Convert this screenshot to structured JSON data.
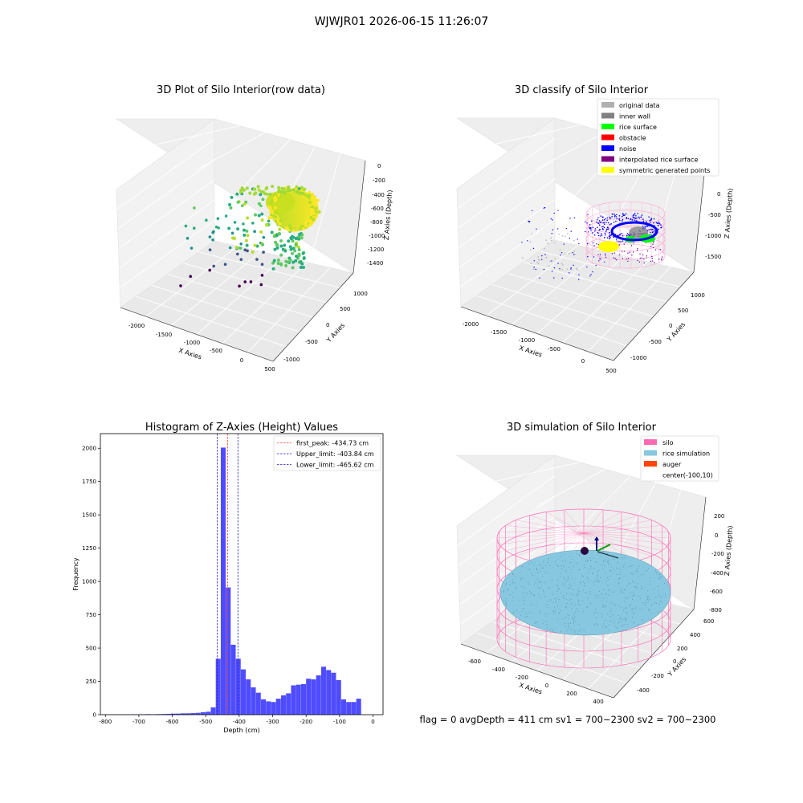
{
  "figure": {
    "suptitle": "WJWJR01 2026-06-15 11:26:07",
    "footer": "flag = 0     avgDepth = 411 cm  sv1 = 700~2300  sv2 = 700~2300"
  },
  "colors": {
    "hist_bar": "#4f4cff",
    "peak_line": "#ff3b30",
    "limit_line": "#1d1dbb",
    "silo": "#ff69b4",
    "rice": "#87c8e0",
    "auger": "#ff4500",
    "original_data": "#b0b0b0",
    "inner_wall": "#808080",
    "rice_surface": "#00ff00",
    "obstacle": "#ff0000",
    "noise": "#0000ff",
    "interpolated": "#800080",
    "symmetric": "#ffff00"
  },
  "chart_data": [
    {
      "type": "scatter",
      "title": "3D Plot of Silo Interior(row data)",
      "xlabel": "X Axies",
      "ylabel": "Y Axies",
      "zlabel": "Z Axies (Depth)",
      "xticks": [
        "-2000",
        "-1500",
        "-1000",
        "-500",
        "0",
        "500"
      ],
      "yticks": [
        "-1000",
        "-500",
        "0",
        "500",
        "1000"
      ],
      "zticks": [
        "0",
        "-200",
        "-400",
        "-600",
        "-800",
        "-1000",
        "-1200",
        "-1400"
      ],
      "colormap": "viridis"
    },
    {
      "type": "scatter",
      "title": "3D classify of Silo Interior",
      "xlabel": "X Axies",
      "ylabel": "Y Axies",
      "zlabel": "Z Axies (Depth)",
      "xticks": [
        "-2000",
        "-1500",
        "-1000",
        "-500",
        "0",
        "500"
      ],
      "yticks": [
        "-1000",
        "-500",
        "0",
        "500",
        "1000"
      ],
      "zticks": [
        "0",
        "-500",
        "-1000",
        "-1500"
      ],
      "legend": [
        "original data",
        "inner wall",
        "rice surface",
        "obstacle",
        "noise",
        "interpolated rice surface",
        "symmetric generated points"
      ],
      "legend_placement": "top-right"
    },
    {
      "type": "bar",
      "title": "Histogram of Z-Axies (Height) Values",
      "xlabel": "Depth (cm)",
      "ylabel": "Frequency",
      "xlim": [
        -815,
        30
      ],
      "ylim": [
        0,
        2110
      ],
      "xticks": [
        "-800",
        "-700",
        "-600",
        "-500",
        "-400",
        "-300",
        "-200",
        "-100",
        "0"
      ],
      "xtick_values": [
        -800,
        -700,
        -600,
        -500,
        -400,
        -300,
        -200,
        -100,
        0
      ],
      "yticks": [
        "0",
        "250",
        "500",
        "750",
        "1000",
        "1250",
        "1500",
        "1750",
        "2000"
      ],
      "ytick_values": [
        0,
        250,
        500,
        750,
        1000,
        1250,
        1500,
        1750,
        2000
      ],
      "bin_edges": [
        -815,
        -800,
        -785,
        -770,
        -755,
        -740,
        -725,
        -710,
        -695,
        -680,
        -665,
        -650,
        -635,
        -620,
        -605,
        -590,
        -575,
        -560,
        -545,
        -530,
        -515,
        -500,
        -485,
        -470,
        -455,
        -440,
        -425,
        -410,
        -395,
        -380,
        -365,
        -350,
        -335,
        -320,
        -305,
        -290,
        -275,
        -260,
        -245,
        -230,
        -215,
        -200,
        -185,
        -170,
        -155,
        -140,
        -125,
        -110,
        -95,
        -80,
        -65,
        -50,
        -35,
        -20,
        -5,
        10
      ],
      "values": [
        2,
        2,
        2,
        2,
        2,
        2,
        3,
        3,
        3,
        4,
        3,
        4,
        5,
        6,
        8,
        8,
        10,
        10,
        12,
        14,
        18,
        22,
        55,
        420,
        2005,
        955,
        525,
        420,
        340,
        265,
        205,
        165,
        115,
        100,
        95,
        120,
        145,
        160,
        220,
        225,
        230,
        270,
        265,
        295,
        360,
        335,
        315,
        260,
        115,
        95,
        95,
        120,
        0,
        0,
        0
      ],
      "vlines": [
        {
          "label": "first_peak: -434.73 cm",
          "x": -434.73,
          "color": "#ff3b30"
        },
        {
          "label": "Upper_limit: -403.84 cm",
          "x": -403.84,
          "color": "#1d1dbb"
        },
        {
          "label": "Lower_limit: -465.62 cm",
          "x": -465.62,
          "color": "#1d1dbb"
        }
      ],
      "legend_placement": "top-right"
    },
    {
      "type": "scatter",
      "title": "3D simulation of Silo Interior",
      "xlabel": "X Axies",
      "ylabel": "Y Axies",
      "zlabel": "Z Axies (Depth)",
      "xticks": [
        "-600",
        "-400",
        "-200",
        "0",
        "200",
        "400"
      ],
      "yticks": [
        "-400",
        "-200",
        "0",
        "200",
        "400",
        "600"
      ],
      "zticks": [
        "200",
        "0",
        "-200",
        "-400",
        "-600",
        "-800"
      ],
      "legend": [
        "silo",
        "rice simulation",
        "auger",
        "center(-100,10)"
      ],
      "legend_placement": "top-right"
    }
  ]
}
